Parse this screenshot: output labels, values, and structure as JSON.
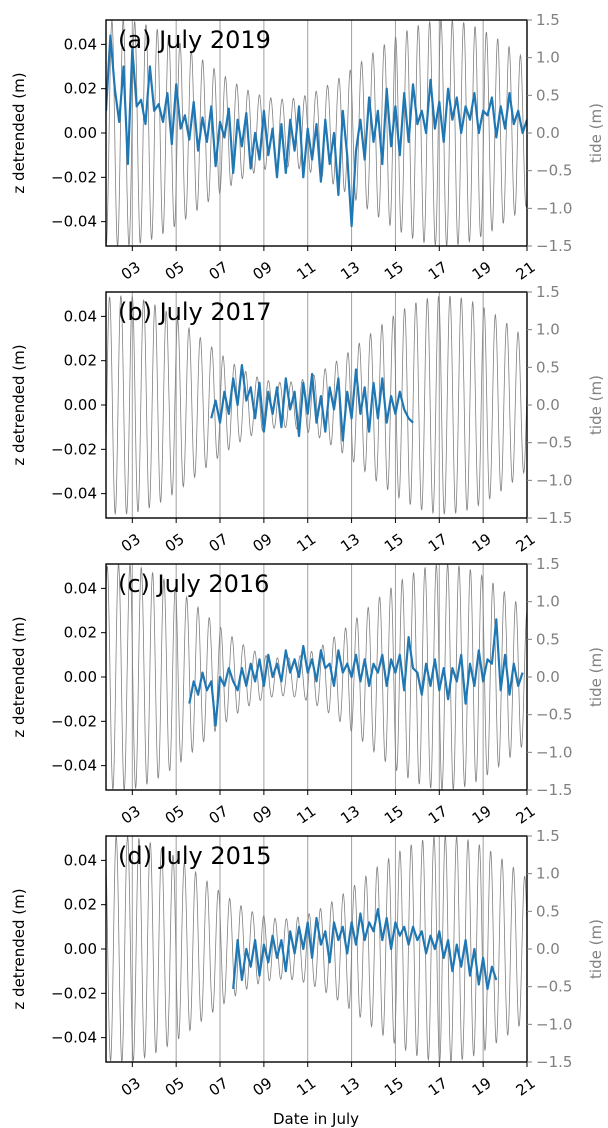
{
  "chart_data": [
    {
      "type": "line",
      "title": "(a) July 2019",
      "xlabel": "",
      "ylabel": "z detrended (m)",
      "ylabel_right": "tide (m)",
      "xlim": [
        1.8,
        21.0
      ],
      "ylim": [
        -0.051,
        0.051
      ],
      "ylim_right": [
        -1.5,
        1.5
      ],
      "yticks": [
        "0.04",
        "0.02",
        "0.00",
        "−0.02",
        "−0.04"
      ],
      "yticks_right": [
        "1.5",
        "1.0",
        "0.5",
        "0.0",
        "−0.5",
        "−1.0",
        "−1.5"
      ],
      "xticks": [
        "03",
        "05",
        "07",
        "09",
        "11",
        "13",
        "15",
        "17",
        "19",
        "21"
      ],
      "grid": "vertical",
      "colors": {
        "z": "#1f77b4",
        "tide": "#808080",
        "grid": "#a0a0a0"
      },
      "series": [
        {
          "axis": "left",
          "x": [
            1.8,
            2.0,
            2.2,
            2.4,
            2.6,
            2.8,
            3.0,
            3.2,
            3.4,
            3.6,
            3.8,
            4.0,
            4.2,
            4.4,
            4.6,
            4.8,
            5.0,
            5.2,
            5.4,
            5.6,
            5.8,
            6.0,
            6.2,
            6.4,
            6.6,
            6.8,
            7.0,
            7.2,
            7.4,
            7.6,
            7.8,
            8.0,
            8.2,
            8.4,
            8.6,
            8.8,
            9.0,
            9.2,
            9.4,
            9.6,
            9.8,
            10.0,
            10.2,
            10.4,
            10.6,
            10.8,
            11.0,
            11.2,
            11.4,
            11.6,
            11.8,
            12.0,
            12.2,
            12.4,
            12.6,
            12.8,
            13.0,
            13.2,
            13.4,
            13.6,
            13.8,
            14.0,
            14.2,
            14.4,
            14.6,
            14.8,
            15.0,
            15.2,
            15.4,
            15.6,
            15.8,
            16.0,
            16.2,
            16.4,
            16.6,
            16.8,
            17.0,
            17.2,
            17.4,
            17.6,
            17.8,
            18.0,
            18.2,
            18.4,
            18.6,
            18.8,
            19.0,
            19.2,
            19.4,
            19.6,
            19.8,
            20.0,
            20.2,
            20.4,
            20.6,
            20.8,
            21.0
          ],
          "y": [
            0.01,
            0.044,
            0.02,
            0.005,
            0.03,
            -0.014,
            0.038,
            0.012,
            0.015,
            0.004,
            0.03,
            0.01,
            0.013,
            0.005,
            0.018,
            -0.005,
            0.022,
            0.002,
            0.008,
            -0.003,
            0.014,
            -0.008,
            0.007,
            -0.004,
            0.012,
            -0.015,
            0.005,
            -0.002,
            0.011,
            -0.018,
            0.006,
            -0.006,
            0.009,
            -0.016,
            0.0,
            -0.012,
            0.01,
            -0.01,
            0.002,
            -0.02,
            0.004,
            -0.018,
            0.006,
            -0.008,
            0.012,
            -0.02,
            0.002,
            -0.012,
            0.004,
            -0.022,
            0.006,
            -0.014,
            0.0,
            -0.028,
            0.01,
            -0.01,
            -0.042,
            -0.008,
            0.006,
            -0.012,
            0.016,
            -0.004,
            0.01,
            -0.014,
            0.02,
            -0.006,
            0.012,
            -0.01,
            0.018,
            -0.004,
            0.022,
            0.004,
            0.01,
            0.0,
            0.024,
            0.002,
            0.014,
            -0.004,
            0.02,
            0.006,
            0.016,
            0.0,
            0.012,
            0.006,
            0.018,
            0.0,
            0.01,
            0.008,
            0.016,
            -0.002,
            0.012,
            0.002,
            0.018,
            0.004,
            0.01,
            0.0,
            0.006
          ]
        }
      ],
      "tide": {
        "axis": "right",
        "x_start": 1.8,
        "x_end": 21.0,
        "period_days": 0.5175,
        "amplitude_min": 0.45,
        "amplitude_max": 1.5
      }
    },
    {
      "type": "line",
      "title": "(b) July 2017",
      "xlabel": "",
      "ylabel": "z detrended (m)",
      "ylabel_right": "tide (m)",
      "xlim": [
        1.8,
        21.0
      ],
      "ylim": [
        -0.051,
        0.051
      ],
      "ylim_right": [
        -1.5,
        1.5
      ],
      "yticks": [
        "0.04",
        "0.02",
        "0.00",
        "−0.02",
        "−0.04"
      ],
      "yticks_right": [
        "1.5",
        "1.0",
        "0.5",
        "0.0",
        "−0.5",
        "−1.0",
        "−1.5"
      ],
      "xticks": [
        "03",
        "05",
        "07",
        "09",
        "11",
        "13",
        "15",
        "17",
        "19",
        "21"
      ],
      "grid": "vertical",
      "colors": {
        "z": "#1f77b4",
        "tide": "#808080",
        "grid": "#a0a0a0"
      },
      "series": [
        {
          "axis": "left",
          "x": [
            6.6,
            6.8,
            7.0,
            7.2,
            7.4,
            7.6,
            7.8,
            8.0,
            8.2,
            8.4,
            8.6,
            8.8,
            9.0,
            9.2,
            9.4,
            9.6,
            9.8,
            10.0,
            10.2,
            10.4,
            10.6,
            10.8,
            11.0,
            11.2,
            11.4,
            11.6,
            11.8,
            12.0,
            12.2,
            12.4,
            12.6,
            12.8,
            13.0,
            13.2,
            13.4,
            13.6,
            13.8,
            14.0,
            14.2,
            14.4,
            14.6,
            14.8,
            15.0,
            15.2,
            15.4,
            15.6,
            15.8
          ],
          "y": [
            -0.006,
            0.002,
            -0.008,
            0.006,
            -0.004,
            0.012,
            0.0,
            0.018,
            0.002,
            0.008,
            -0.006,
            0.01,
            -0.012,
            0.006,
            -0.004,
            0.008,
            -0.01,
            0.012,
            -0.002,
            0.006,
            -0.014,
            0.01,
            -0.004,
            0.014,
            -0.008,
            0.004,
            -0.012,
            0.008,
            -0.002,
            0.012,
            -0.016,
            0.006,
            -0.006,
            0.016,
            -0.004,
            0.008,
            -0.012,
            0.01,
            -0.006,
            0.012,
            -0.008,
            0.004,
            -0.004,
            0.006,
            -0.002,
            -0.006,
            -0.008
          ]
        }
      ],
      "tide": {
        "axis": "right",
        "x_start": 1.8,
        "x_end": 21.0,
        "period_days": 0.5175,
        "amplitude_min": 0.3,
        "amplitude_max": 1.45
      }
    },
    {
      "type": "line",
      "title": "(c) July 2016",
      "xlabel": "",
      "ylabel": "z detrended (m)",
      "ylabel_right": "tide (m)",
      "xlim": [
        1.8,
        21.0
      ],
      "ylim": [
        -0.051,
        0.051
      ],
      "ylim_right": [
        -1.5,
        1.5
      ],
      "yticks": [
        "0.04",
        "0.02",
        "0.00",
        "−0.02",
        "−0.04"
      ],
      "yticks_right": [
        "1.5",
        "1.0",
        "0.5",
        "0.0",
        "−0.5",
        "−1.0",
        "−1.5"
      ],
      "xticks": [
        "03",
        "05",
        "07",
        "09",
        "11",
        "13",
        "15",
        "17",
        "19",
        "21"
      ],
      "grid": "vertical",
      "colors": {
        "z": "#1f77b4",
        "tide": "#808080",
        "grid": "#a0a0a0"
      },
      "series": [
        {
          "axis": "left",
          "x": [
            5.6,
            5.8,
            6.0,
            6.2,
            6.4,
            6.6,
            6.8,
            7.0,
            7.2,
            7.4,
            7.6,
            7.8,
            8.0,
            8.2,
            8.4,
            8.6,
            8.8,
            9.0,
            9.2,
            9.4,
            9.6,
            9.8,
            10.0,
            10.2,
            10.4,
            10.6,
            10.8,
            11.0,
            11.2,
            11.4,
            11.6,
            11.8,
            12.0,
            12.2,
            12.4,
            12.6,
            12.8,
            13.0,
            13.2,
            13.4,
            13.6,
            13.8,
            14.0,
            14.2,
            14.4,
            14.6,
            14.8,
            15.0,
            15.2,
            15.4,
            15.6,
            15.8,
            16.0,
            16.2,
            16.4,
            16.6,
            16.8,
            17.0,
            17.2,
            17.4,
            17.6,
            17.8,
            18.0,
            18.2,
            18.4,
            18.6,
            18.8,
            19.0,
            19.2,
            19.4,
            19.6,
            19.8,
            20.0,
            20.2,
            20.4,
            20.6,
            20.8
          ],
          "y": [
            -0.012,
            -0.002,
            -0.008,
            0.002,
            -0.006,
            -0.002,
            -0.022,
            0.0,
            -0.004,
            0.004,
            -0.002,
            -0.006,
            0.004,
            -0.004,
            0.006,
            -0.002,
            0.008,
            -0.004,
            0.01,
            0.0,
            0.006,
            -0.002,
            0.012,
            0.002,
            0.008,
            0.0,
            0.014,
            0.002,
            0.008,
            -0.002,
            0.012,
            0.004,
            0.006,
            -0.004,
            0.012,
            0.002,
            0.006,
            0.0,
            0.01,
            -0.002,
            0.008,
            -0.004,
            0.006,
            0.002,
            0.01,
            -0.004,
            0.008,
            0.002,
            0.01,
            -0.006,
            0.018,
            0.004,
            0.002,
            -0.008,
            0.006,
            -0.004,
            0.008,
            -0.006,
            0.004,
            -0.01,
            0.004,
            -0.002,
            0.01,
            -0.012,
            0.006,
            -0.004,
            0.012,
            -0.002,
            0.008,
            0.006,
            0.026,
            -0.006,
            0.01,
            -0.008,
            0.006,
            -0.004,
            0.002
          ]
        }
      ],
      "tide": {
        "axis": "right",
        "x_start": 1.8,
        "x_end": 21.0,
        "period_days": 0.5175,
        "amplitude_min": 0.25,
        "amplitude_max": 1.5
      }
    },
    {
      "type": "line",
      "title": "(d) July 2015",
      "xlabel": "Date in July",
      "ylabel": "z detrended (m)",
      "ylabel_right": "tide (m)",
      "xlim": [
        1.8,
        21.0
      ],
      "ylim": [
        -0.051,
        0.051
      ],
      "ylim_right": [
        -1.5,
        1.5
      ],
      "yticks": [
        "0.04",
        "0.02",
        "0.00",
        "−0.02",
        "−0.04"
      ],
      "yticks_right": [
        "1.5",
        "1.0",
        "0.5",
        "0.0",
        "−0.5",
        "−1.0",
        "−1.5"
      ],
      "xticks": [
        "03",
        "05",
        "07",
        "09",
        "11",
        "13",
        "15",
        "17",
        "19",
        "21"
      ],
      "grid": "vertical",
      "colors": {
        "z": "#1f77b4",
        "tide": "#808080",
        "grid": "#a0a0a0"
      },
      "series": [
        {
          "axis": "left",
          "x": [
            7.6,
            7.8,
            8.0,
            8.2,
            8.4,
            8.6,
            8.8,
            9.0,
            9.2,
            9.4,
            9.6,
            9.8,
            10.0,
            10.2,
            10.4,
            10.6,
            10.8,
            11.0,
            11.2,
            11.4,
            11.6,
            11.8,
            12.0,
            12.2,
            12.4,
            12.6,
            12.8,
            13.0,
            13.2,
            13.4,
            13.6,
            13.8,
            14.0,
            14.2,
            14.4,
            14.6,
            14.8,
            15.0,
            15.2,
            15.4,
            15.6,
            15.8,
            16.0,
            16.2,
            16.4,
            16.6,
            16.8,
            17.0,
            17.2,
            17.4,
            17.6,
            17.8,
            18.0,
            18.2,
            18.4,
            18.6,
            18.8,
            19.0,
            19.2,
            19.4,
            19.6
          ],
          "y": [
            -0.018,
            0.004,
            -0.014,
            0.0,
            -0.008,
            0.004,
            -0.012,
            0.002,
            -0.006,
            0.006,
            -0.004,
            0.004,
            -0.01,
            0.008,
            -0.002,
            0.01,
            0.0,
            0.012,
            -0.004,
            0.014,
            0.002,
            0.008,
            -0.006,
            0.012,
            0.004,
            0.01,
            -0.002,
            0.012,
            0.002,
            0.016,
            0.004,
            0.012,
            0.008,
            0.018,
            0.004,
            0.014,
            0.0,
            0.012,
            0.006,
            0.01,
            0.002,
            0.01,
            0.004,
            0.008,
            -0.002,
            0.006,
            0.0,
            0.008,
            -0.004,
            0.004,
            -0.01,
            0.002,
            -0.008,
            0.004,
            -0.012,
            0.0,
            -0.016,
            -0.004,
            -0.018,
            -0.008,
            -0.014
          ]
        }
      ],
      "tide": {
        "axis": "right",
        "x_start": 1.8,
        "x_end": 21.0,
        "period_days": 0.5175,
        "amplitude_min": 0.4,
        "amplitude_max": 1.5
      }
    }
  ]
}
